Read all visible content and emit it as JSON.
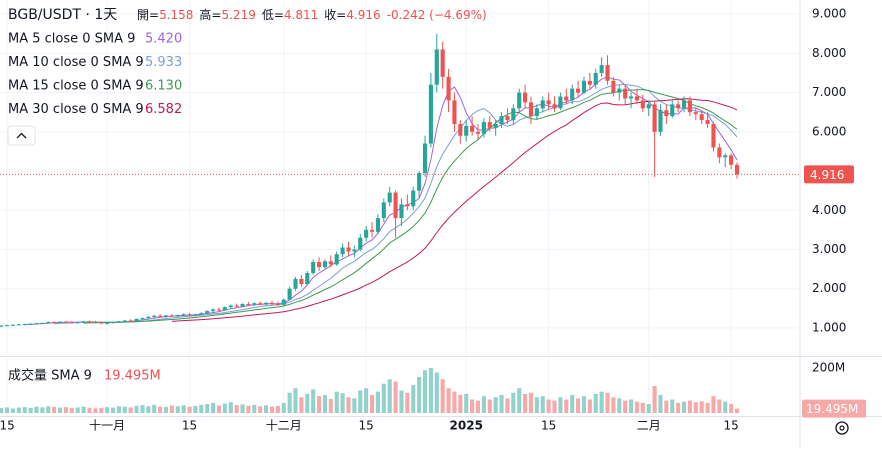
{
  "chart_data": {
    "type": "candlestick",
    "header": {
      "symbol": "BGB/USDT · 1天",
      "ohlc": [
        {
          "label": "開=",
          "value": 5.158
        },
        {
          "label": "高=",
          "value": 5.219
        },
        {
          "label": "低=",
          "value": 4.811
        },
        {
          "label": "收=",
          "value": 4.916
        }
      ],
      "change": "-0.242 (−4.69%)"
    },
    "moving_averages": [
      {
        "name": "MA 5 close 0 SMA 9",
        "length": 5,
        "value": "5.420",
        "color": "#a064d6"
      },
      {
        "name": "MA 10 close 0 SMA 9",
        "length": 10,
        "value": "5.933",
        "color": "#7ba0d1"
      },
      {
        "name": "MA 15 close 0 SMA 9",
        "length": 15,
        "value": "6.130",
        "color": "#3d9a50"
      },
      {
        "name": "MA 30 close 0 SMA 9",
        "length": 30,
        "value": "6.582",
        "color": "#c2185b"
      }
    ],
    "up_color": "#26a69a",
    "down_color": "#ef5350",
    "volume_up_color": "#92d2cc",
    "volume_down_color": "#f7a9a7",
    "volume_legend": "成交量 SMA 9",
    "volume_value": "19.495M",
    "ylim": [
      0.31,
      9.36
    ],
    "yticks": [
      {
        "value": 1,
        "label": "1.000"
      },
      {
        "value": 2,
        "label": "2.000"
      },
      {
        "value": 3,
        "label": "3.000"
      },
      {
        "value": 4,
        "label": "4.000"
      },
      {
        "value": 5,
        "label": "5.000"
      },
      {
        "value": 6,
        "label": "6.000"
      },
      {
        "value": 7,
        "label": "7.000"
      },
      {
        "value": 8,
        "label": "8.000"
      },
      {
        "value": 9,
        "label": "9.000"
      }
    ],
    "vlim": [
      0,
      200
    ],
    "vticks": [
      {
        "value": 200,
        "label": "200M"
      }
    ],
    "xlim": [
      -0.2,
      135.7
    ],
    "xticks": [
      {
        "value": 1,
        "label": "15"
      },
      {
        "value": 18,
        "label": "十一月"
      },
      {
        "value": 32,
        "label": "15"
      },
      {
        "value": 48,
        "label": "十二月"
      },
      {
        "value": 62,
        "label": "15"
      },
      {
        "value": 79,
        "label": "2025",
        "bold": true
      },
      {
        "value": 93,
        "label": "15"
      },
      {
        "value": 110,
        "label": "二月"
      },
      {
        "value": 124,
        "label": "15"
      }
    ],
    "candles": [
      [
        1.04,
        1.07,
        1.02,
        1.06
      ],
      [
        1.06,
        1.08,
        1.04,
        1.07
      ],
      [
        1.07,
        1.09,
        1.05,
        1.08
      ],
      [
        1.08,
        1.1,
        1.06,
        1.09
      ],
      [
        1.09,
        1.11,
        1.07,
        1.1
      ],
      [
        1.1,
        1.12,
        1.08,
        1.11
      ],
      [
        1.11,
        1.13,
        1.09,
        1.12
      ],
      [
        1.12,
        1.14,
        1.1,
        1.13
      ],
      [
        1.13,
        1.16,
        1.11,
        1.15
      ],
      [
        1.15,
        1.17,
        1.12,
        1.14
      ],
      [
        1.14,
        1.17,
        1.12,
        1.16
      ],
      [
        1.16,
        1.18,
        1.13,
        1.15
      ],
      [
        1.15,
        1.17,
        1.12,
        1.13
      ],
      [
        1.13,
        1.16,
        1.11,
        1.15
      ],
      [
        1.15,
        1.18,
        1.13,
        1.17
      ],
      [
        1.17,
        1.19,
        1.14,
        1.16
      ],
      [
        1.16,
        1.18,
        1.12,
        1.14
      ],
      [
        1.14,
        1.16,
        1.1,
        1.12
      ],
      [
        1.12,
        1.15,
        1.09,
        1.13
      ],
      [
        1.13,
        1.16,
        1.11,
        1.15
      ],
      [
        1.15,
        1.18,
        1.13,
        1.17
      ],
      [
        1.17,
        1.2,
        1.15,
        1.19
      ],
      [
        1.19,
        1.22,
        1.16,
        1.18
      ],
      [
        1.18,
        1.24,
        1.17,
        1.23
      ],
      [
        1.23,
        1.27,
        1.21,
        1.25
      ],
      [
        1.25,
        1.3,
        1.23,
        1.28
      ],
      [
        1.28,
        1.33,
        1.26,
        1.31
      ],
      [
        1.31,
        1.35,
        1.27,
        1.29
      ],
      [
        1.29,
        1.33,
        1.26,
        1.32
      ],
      [
        1.32,
        1.36,
        1.29,
        1.3
      ],
      [
        1.3,
        1.34,
        1.28,
        1.33
      ],
      [
        1.33,
        1.37,
        1.3,
        1.35
      ],
      [
        1.35,
        1.38,
        1.31,
        1.33
      ],
      [
        1.33,
        1.36,
        1.3,
        1.35
      ],
      [
        1.35,
        1.4,
        1.33,
        1.38
      ],
      [
        1.38,
        1.45,
        1.36,
        1.43
      ],
      [
        1.43,
        1.5,
        1.4,
        1.47
      ],
      [
        1.47,
        1.52,
        1.43,
        1.45
      ],
      [
        1.45,
        1.55,
        1.44,
        1.53
      ],
      [
        1.53,
        1.6,
        1.5,
        1.57
      ],
      [
        1.57,
        1.62,
        1.53,
        1.55
      ],
      [
        1.55,
        1.63,
        1.53,
        1.61
      ],
      [
        1.61,
        1.66,
        1.57,
        1.6
      ],
      [
        1.6,
        1.65,
        1.56,
        1.63
      ],
      [
        1.63,
        1.68,
        1.58,
        1.6
      ],
      [
        1.6,
        1.66,
        1.57,
        1.64
      ],
      [
        1.64,
        1.7,
        1.58,
        1.61
      ],
      [
        1.61,
        1.67,
        1.56,
        1.59
      ],
      [
        1.59,
        1.75,
        1.57,
        1.72
      ],
      [
        1.72,
        2.05,
        1.7,
        2.0
      ],
      [
        2.0,
        2.3,
        1.95,
        2.25
      ],
      [
        2.25,
        2.35,
        2.05,
        2.12
      ],
      [
        2.12,
        2.45,
        2.1,
        2.4
      ],
      [
        2.4,
        2.75,
        2.35,
        2.68
      ],
      [
        2.68,
        2.8,
        2.45,
        2.55
      ],
      [
        2.55,
        2.75,
        2.5,
        2.7
      ],
      [
        2.7,
        2.85,
        2.55,
        2.62
      ],
      [
        2.62,
        2.95,
        2.58,
        2.88
      ],
      [
        2.88,
        3.15,
        2.8,
        3.05
      ],
      [
        3.05,
        3.2,
        2.85,
        2.95
      ],
      [
        2.95,
        3.1,
        2.8,
        3.0
      ],
      [
        3.0,
        3.4,
        2.95,
        3.3
      ],
      [
        3.3,
        3.6,
        3.2,
        3.5
      ],
      [
        3.5,
        3.7,
        3.3,
        3.45
      ],
      [
        3.45,
        3.9,
        3.4,
        3.8
      ],
      [
        3.8,
        4.3,
        3.7,
        4.2
      ],
      [
        4.2,
        4.6,
        4.1,
        4.45
      ],
      [
        4.45,
        4.5,
        3.3,
        3.8
      ],
      [
        3.8,
        4.3,
        3.6,
        4.15
      ],
      [
        4.15,
        4.4,
        4.0,
        4.1
      ],
      [
        4.1,
        4.6,
        4.0,
        4.5
      ],
      [
        4.5,
        5.0,
        4.3,
        4.95
      ],
      [
        4.95,
        5.9,
        4.85,
        5.7
      ],
      [
        5.7,
        7.5,
        5.6,
        7.2
      ],
      [
        7.2,
        8.5,
        7.0,
        8.1
      ],
      [
        8.1,
        8.3,
        7.1,
        7.4
      ],
      [
        7.4,
        7.6,
        6.5,
        6.8
      ],
      [
        6.8,
        7.0,
        6.0,
        6.2
      ],
      [
        6.2,
        6.3,
        5.7,
        5.9
      ],
      [
        5.9,
        6.3,
        5.75,
        6.15
      ],
      [
        6.15,
        6.4,
        5.9,
        6.0
      ],
      [
        6.0,
        6.2,
        5.8,
        5.95
      ],
      [
        5.95,
        6.35,
        5.85,
        6.25
      ],
      [
        6.25,
        6.4,
        6.0,
        6.1
      ],
      [
        6.1,
        6.3,
        5.9,
        6.2
      ],
      [
        6.2,
        6.5,
        6.1,
        6.4
      ],
      [
        6.4,
        6.6,
        6.2,
        6.3
      ],
      [
        6.3,
        6.7,
        6.2,
        6.6
      ],
      [
        6.6,
        7.1,
        6.5,
        7.0
      ],
      [
        7.0,
        7.2,
        6.6,
        6.75
      ],
      [
        6.75,
        6.9,
        6.2,
        6.4
      ],
      [
        6.4,
        6.7,
        6.3,
        6.6
      ],
      [
        6.6,
        6.9,
        6.5,
        6.8
      ],
      [
        6.8,
        7.0,
        6.55,
        6.7
      ],
      [
        6.7,
        6.9,
        6.5,
        6.6
      ],
      [
        6.6,
        7.0,
        6.55,
        6.9
      ],
      [
        6.9,
        7.1,
        6.7,
        6.8
      ],
      [
        6.8,
        7.2,
        6.7,
        7.1
      ],
      [
        7.1,
        7.3,
        6.9,
        7.0
      ],
      [
        7.0,
        7.4,
        6.95,
        7.3
      ],
      [
        7.3,
        7.5,
        7.1,
        7.2
      ],
      [
        7.2,
        7.6,
        7.1,
        7.5
      ],
      [
        7.5,
        7.9,
        7.4,
        7.7
      ],
      [
        7.7,
        7.95,
        7.2,
        7.3
      ],
      [
        7.3,
        7.4,
        6.9,
        7.0
      ],
      [
        7.0,
        7.2,
        6.8,
        7.1
      ],
      [
        7.1,
        7.2,
        6.7,
        6.85
      ],
      [
        6.85,
        7.0,
        6.6,
        6.9
      ],
      [
        6.9,
        7.1,
        6.7,
        6.8
      ],
      [
        6.8,
        6.95,
        6.5,
        6.6
      ],
      [
        6.6,
        6.8,
        6.4,
        6.7
      ],
      [
        6.7,
        6.8,
        4.85,
        6.0
      ],
      [
        6.0,
        6.7,
        5.9,
        6.55
      ],
      [
        6.55,
        6.7,
        6.2,
        6.4
      ],
      [
        6.4,
        6.8,
        6.35,
        6.7
      ],
      [
        6.7,
        6.8,
        6.5,
        6.6
      ],
      [
        6.6,
        6.9,
        6.5,
        6.8
      ],
      [
        6.8,
        6.9,
        6.4,
        6.5
      ],
      [
        6.5,
        6.6,
        6.3,
        6.45
      ],
      [
        6.45,
        6.55,
        6.2,
        6.3
      ],
      [
        6.3,
        6.5,
        6.1,
        6.2
      ],
      [
        6.2,
        6.25,
        5.5,
        5.6
      ],
      [
        5.6,
        5.7,
        5.2,
        5.35
      ],
      [
        5.35,
        5.45,
        5.1,
        5.4
      ],
      [
        5.4,
        5.45,
        5.05,
        5.158
      ],
      [
        5.158,
        5.219,
        4.811,
        4.916
      ]
    ],
    "volumes": [
      22,
      25,
      20,
      24,
      26,
      23,
      28,
      25,
      30,
      27,
      24,
      26,
      22,
      25,
      28,
      24,
      21,
      23,
      26,
      24,
      30,
      28,
      25,
      32,
      35,
      30,
      36,
      28,
      27,
      33,
      30,
      34,
      28,
      31,
      36,
      40,
      45,
      33,
      42,
      48,
      35,
      38,
      32,
      36,
      30,
      34,
      29,
      31,
      45,
      90,
      110,
      70,
      85,
      105,
      75,
      80,
      62,
      95,
      88,
      70,
      65,
      100,
      110,
      80,
      95,
      130,
      150,
      140,
      100,
      90,
      125,
      160,
      190,
      200,
      180,
      150,
      110,
      95,
      80,
      85,
      60,
      55,
      75,
      60,
      70,
      80,
      65,
      90,
      110,
      85,
      90,
      70,
      75,
      60,
      55,
      70,
      60,
      80,
      65,
      75,
      60,
      85,
      95,
      90,
      70,
      65,
      55,
      60,
      50,
      45,
      40,
      120,
      80,
      55,
      60,
      45,
      50,
      55,
      48,
      52,
      45,
      75,
      60,
      50,
      40,
      19.495
    ]
  }
}
